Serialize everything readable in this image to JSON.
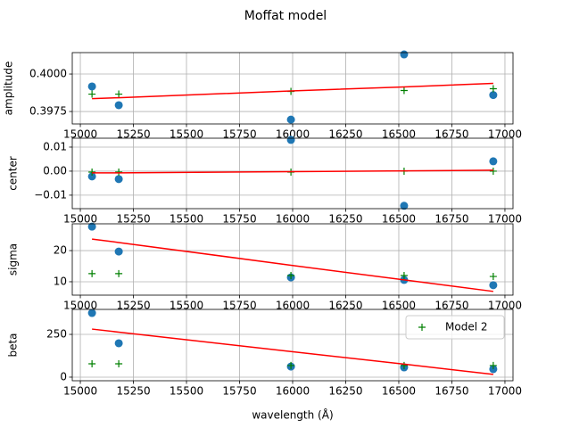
{
  "chart_data": [
    {
      "type": "scatter",
      "title": "Moffat model",
      "ylabel": "amplitude",
      "xlim": [
        14962,
        17038
      ],
      "xticks": [
        15000,
        15250,
        15500,
        15750,
        16000,
        16250,
        16500,
        16750,
        17000
      ],
      "ylim": [
        0.39667,
        0.40143
      ],
      "yticks": [
        {
          "value": 0.3975,
          "label": "0.3975"
        },
        {
          "value": 0.4,
          "label": "0.4000"
        }
      ],
      "grid": true,
      "x": [
        15055,
        15181,
        15992,
        16525,
        16945
      ],
      "series": [
        {
          "color": "#1f77b4",
          "marker": "o",
          "values": [
            0.39917,
            0.39792,
            0.39696,
            0.40131,
            0.3986
          ]
        },
        {
          "name": "Model 2",
          "color": "#008000",
          "marker": "+",
          "values": [
            0.39866,
            0.39866,
            0.39884,
            0.3989,
            0.39902
          ]
        },
        {
          "color": "#ff0000",
          "marker": null,
          "values": [
            0.39836,
            0.39842,
            0.39887,
            0.39914,
            0.39938
          ]
        }
      ]
    },
    {
      "type": "scatter",
      "ylabel": "center",
      "xlim": [
        14962,
        17038
      ],
      "xticks": [
        15000,
        15250,
        15500,
        15750,
        16000,
        16250,
        16500,
        16750,
        17000
      ],
      "ylim": [
        -0.0156,
        0.0137
      ],
      "yticks": [
        {
          "value": -0.01,
          "label": "−0.01"
        },
        {
          "value": 0,
          "label": "0.00"
        },
        0.01
      ],
      "grid": true,
      "x": [
        15055,
        15181,
        15992,
        16525,
        16945
      ],
      "series": [
        {
          "color": "#1f77b4",
          "marker": "o",
          "values": [
            -0.0022,
            -0.0033,
            0.013,
            -0.0144,
            0.0041
          ]
        },
        {
          "name": "Model 2",
          "color": "#008000",
          "marker": "+",
          "values": [
            -0.0004,
            -0.0004,
            -0.0004,
            0,
            0
          ]
        },
        {
          "color": "#ff0000",
          "marker": null,
          "values": [
            -0.0007,
            -0.0007,
            -0.0002,
            0.0001,
            0.0004
          ]
        }
      ]
    },
    {
      "type": "scatter",
      "ylabel": "sigma",
      "xlim": [
        14962,
        17038
      ],
      "xticks": [
        15000,
        15250,
        15500,
        15750,
        16000,
        16250,
        16500,
        16750,
        17000
      ],
      "ylim": [
        5.7,
        28.6
      ],
      "yticks": [
        10,
        20
      ],
      "grid": true,
      "x": [
        15055,
        15181,
        15992,
        16525,
        16945
      ],
      "series": [
        {
          "color": "#1f77b4",
          "marker": "o",
          "values": [
            27.7,
            19.7,
            11.4,
            10.6,
            8.9
          ]
        },
        {
          "name": "Model 2",
          "color": "#008000",
          "marker": "+",
          "values": [
            12.6,
            12.6,
            12.0,
            12.0,
            11.7
          ]
        },
        {
          "color": "#ff0000",
          "marker": null,
          "values": [
            23.7,
            22.6,
            15.3,
            10.6,
            6.9
          ]
        }
      ]
    },
    {
      "type": "scatter",
      "ylabel": "beta",
      "xlabel": "wavelength (Å)",
      "legend": "upper right",
      "xlim": [
        14962,
        17038
      ],
      "xticks": [
        15000,
        15250,
        15500,
        15750,
        16000,
        16250,
        16500,
        16750,
        17000
      ],
      "ylim": [
        -21,
        396
      ],
      "yticks": [
        0,
        250
      ],
      "grid": true,
      "x": [
        15055,
        15181,
        15992,
        16525,
        16945
      ],
      "series": [
        {
          "color": "#1f77b4",
          "marker": "o",
          "values": [
            375,
            198,
            62,
            57,
            47
          ]
        },
        {
          "name": "Model 2",
          "color": "#008000",
          "marker": "+",
          "values": [
            78,
            78,
            68,
            68,
            68
          ]
        },
        {
          "color": "#ff0000",
          "marker": null,
          "values": [
            281,
            263,
            150,
            76,
            16
          ]
        }
      ]
    }
  ]
}
